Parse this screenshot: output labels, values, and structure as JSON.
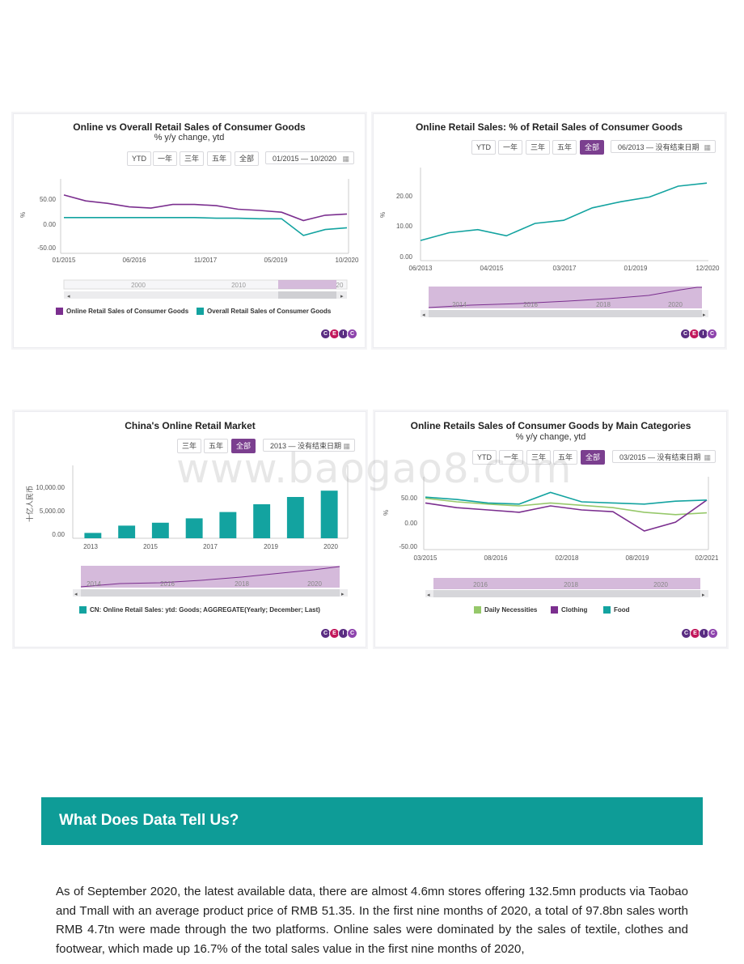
{
  "colors": {
    "purple": "#7b2f8f",
    "teal": "#13a3a0",
    "green": "#96c86a",
    "banner": "#0e9c97",
    "active_button": "#7b3f8f"
  },
  "ceic_logo": {
    "letters": [
      "C",
      "E",
      "I",
      "C"
    ]
  },
  "watermark": "www.baogao8.com",
  "charts": [
    {
      "title": "Online vs Overall Retail Sales of Consumer Goods",
      "subtitle": "% y/y change, ytd",
      "buttons": [
        "YTD",
        "一年",
        "三年",
        "五年",
        "全部"
      ],
      "range": "01/2015 — 10/2020",
      "y_unit": "%",
      "y_ticks": [
        "50.00",
        "0.00",
        "-50.00"
      ],
      "x_ticks": [
        "01/2015",
        "06/2016",
        "11/2017",
        "05/2019",
        "10/2020"
      ],
      "navigator_ticks": [
        "2000",
        "2010",
        "20"
      ],
      "legend": [
        "Online Retail Sales of Consumer Goods",
        "Overall Retail Sales of Consumer Goods"
      ]
    },
    {
      "title": "Online Retail Sales: % of Retail Sales of Consumer Goods",
      "buttons": [
        "YTD",
        "一年",
        "三年",
        "五年",
        "全部"
      ],
      "range": "06/2013 — 没有结束日期",
      "y_unit": "%",
      "y_ticks": [
        "20.00",
        "10.00",
        "0.00"
      ],
      "x_ticks": [
        "06/2013",
        "04/2015",
        "03/2017",
        "01/2019",
        "12/2020"
      ],
      "navigator_ticks": [
        "2014",
        "2016",
        "2018",
        "2020"
      ]
    },
    {
      "title": "China's Online Retail Market",
      "buttons": [
        "三年",
        "五年",
        "全部"
      ],
      "range": "2013 — 没有结束日期",
      "y_unit": "十亿人民币",
      "y_ticks": [
        "10,000.00",
        "5,000.00",
        "0.00"
      ],
      "x_ticks": [
        "2013",
        "2015",
        "2017",
        "2019",
        "2020"
      ],
      "navigator_ticks": [
        "2014",
        "2016",
        "2018",
        "2020"
      ],
      "legend": [
        "CN: Online Retail Sales: ytd: Goods; AGGREGATE(Yearly; December; Last)"
      ]
    },
    {
      "title": "Online Retails Sales of Consumer Goods by Main Categories",
      "subtitle": "% y/y change, ytd",
      "buttons": [
        "YTD",
        "一年",
        "三年",
        "五年",
        "全部"
      ],
      "range": "03/2015 — 没有结束日期",
      "y_unit": "%",
      "y_ticks": [
        "50.00",
        "0.00",
        "-50.00"
      ],
      "x_ticks": [
        "03/2015",
        "08/2016",
        "02/2018",
        "08/2019",
        "02/2021"
      ],
      "navigator_ticks": [
        "2016",
        "2018",
        "2020"
      ],
      "legend": [
        "Daily Necessities",
        "Clothing",
        "Food"
      ]
    }
  ],
  "chart_data": [
    {
      "type": "line",
      "title": "Online vs Overall Retail Sales of Consumer Goods",
      "xlabel": "",
      "ylabel": "%",
      "x": [
        "01/2015",
        "06/2015",
        "12/2015",
        "06/2016",
        "12/2016",
        "06/2017",
        "12/2017",
        "06/2018",
        "12/2018",
        "06/2019",
        "12/2019",
        "02/2020",
        "06/2020",
        "10/2020"
      ],
      "ylim": [
        -50,
        75
      ],
      "series": [
        {
          "name": "Online Retail Sales of Consumer Goods",
          "values": [
            48,
            38,
            34,
            28,
            26,
            32,
            32,
            30,
            24,
            22,
            19,
            5,
            14,
            16
          ]
        },
        {
          "name": "Overall Retail Sales of Consumer Goods",
          "values": [
            10,
            10,
            10,
            10,
            10,
            10,
            10,
            9,
            9,
            8,
            8,
            -20,
            -10,
            -7
          ]
        }
      ]
    },
    {
      "type": "line",
      "title": "Online Retail Sales: % of Retail Sales of Consumer Goods",
      "xlabel": "",
      "ylabel": "%",
      "x": [
        "06/2013",
        "06/2014",
        "06/2015",
        "12/2015",
        "06/2016",
        "06/2017",
        "06/2018",
        "06/2019",
        "12/2019",
        "06/2020",
        "12/2020"
      ],
      "ylim": [
        0,
        30
      ],
      "series": [
        {
          "name": "Online Retail Sales: % of Retail Sales",
          "values": [
            6.5,
            9,
            10,
            8,
            12,
            13,
            17,
            19,
            20.5,
            24,
            25
          ]
        }
      ]
    },
    {
      "type": "bar",
      "title": "China's Online Retail Market",
      "xlabel": "",
      "ylabel": "十亿人民币",
      "categories": [
        "2013",
        "2014",
        "2015",
        "2016",
        "2017",
        "2018",
        "2019",
        "2020"
      ],
      "ylim": [
        0,
        15000
      ],
      "series": [
        {
          "name": "CN: Online Retail Sales: ytd: Goods; AGGREGATE(Yearly; December; Last)",
          "values": [
            1100,
            2600,
            3200,
            4100,
            5400,
            7000,
            8500,
            9800
          ]
        }
      ]
    },
    {
      "type": "line",
      "title": "Online Retails Sales of Consumer Goods by Main Categories",
      "xlabel": "",
      "ylabel": "%",
      "x": [
        "03/2015",
        "12/2015",
        "08/2016",
        "05/2017",
        "02/2018",
        "11/2018",
        "08/2019",
        "02/2020",
        "08/2020",
        "02/2021"
      ],
      "ylim": [
        -50,
        75
      ],
      "series": [
        {
          "name": "Daily Necessities",
          "values": [
            38,
            32,
            28,
            25,
            30,
            26,
            22,
            14,
            10,
            13
          ]
        },
        {
          "name": "Clothing",
          "values": [
            30,
            22,
            18,
            14,
            25,
            18,
            15,
            -18,
            -3,
            35
          ]
        },
        {
          "name": "Food",
          "values": [
            40,
            36,
            30,
            28,
            48,
            32,
            30,
            28,
            33,
            35
          ]
        }
      ]
    }
  ],
  "section": {
    "heading": "What Does Data Tell Us?",
    "paragraph": "As of September 2020, the latest available data, there are almost 4.6mn stores offering 132.5mn products via Taobao and Tmall with an average product price of RMB 51.35. In the first nine months of 2020, a total of 97.8bn sales worth RMB 4.7tn were made through the two platforms. Online sales were dominated by the sales of textile, clothes and footwear, which made up 16.7% of the total sales value in the first nine months of 2020,"
  }
}
